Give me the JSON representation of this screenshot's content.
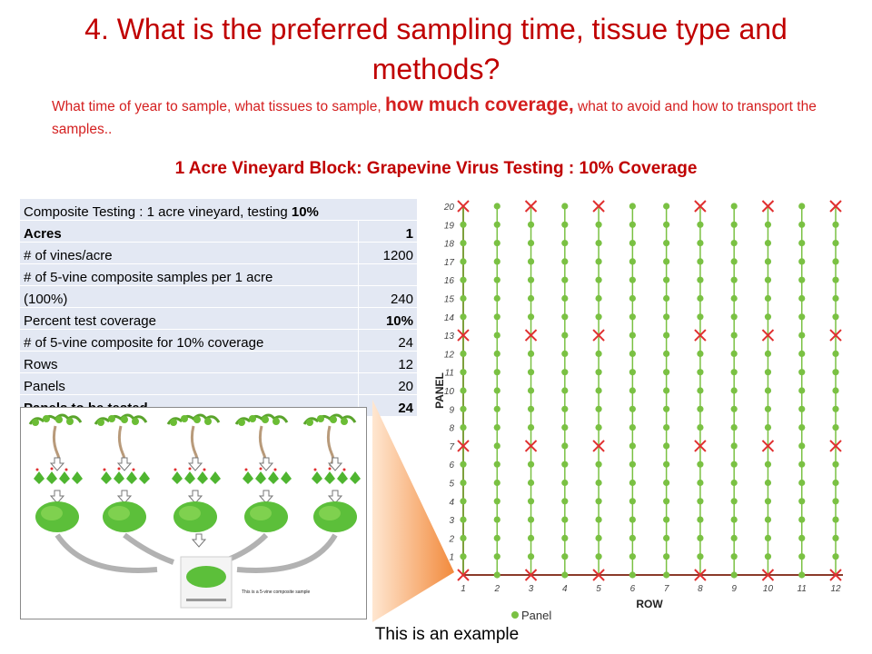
{
  "slide": {
    "title_line1": "4. What is the preferred sampling time, tissue type and",
    "title_line2": "methods?",
    "subtitle_a": "What time of year to sample, what tissues to sample, ",
    "subtitle_b": "how much coverage,",
    "subtitle_c": " what to avoid and how to transport the samples..",
    "block_title": "1 Acre Vineyard Block: Grapevine Virus Testing : 10% Coverage",
    "footer": "This is an example",
    "colors": {
      "title": "#c00000",
      "table_bg": "#e3e8f3",
      "dot": "#7ac143",
      "cross": "#e03030",
      "axis": "#8b3a2a"
    }
  },
  "table": {
    "header_text": "Composite Testing  : 1 acre vineyard, testing ",
    "header_bold": "10%",
    "rows": [
      {
        "label": "Acres",
        "value": "1"
      },
      {
        "label": "# of vines/acre",
        "value": "1200"
      },
      {
        "label": "# of 5-vine composite samples per 1 acre",
        "value": ""
      },
      {
        "label": "(100%)",
        "value": "240"
      },
      {
        "label": "Percent test coverage",
        "value": "10%"
      },
      {
        "label": "# of 5-vine composite for 10% coverage",
        "value": "24"
      },
      {
        "label": "Rows",
        "value": "12"
      },
      {
        "label": "Panels",
        "value": "20"
      },
      {
        "label": "Panels to be tested",
        "value": "24"
      }
    ]
  },
  "illustration": {
    "sample_caption": "This is a 5-vine composite sample",
    "icons": [
      "grapevine-icon",
      "arrow-down-icon",
      "leaf-cluster-icon",
      "sample-bag-icon"
    ]
  },
  "chart_data": {
    "type": "scatter",
    "xlabel": "ROW",
    "ylabel": "PANEL",
    "xlim": [
      1,
      12
    ],
    "ylim": [
      0,
      20
    ],
    "x_ticks": [
      "1",
      "2",
      "3",
      "4",
      "5",
      "6",
      "7",
      "8",
      "9",
      "10",
      "11",
      "12"
    ],
    "y_ticks": [
      "1",
      "2",
      "3",
      "4",
      "5",
      "6",
      "7",
      "8",
      "9",
      "10",
      "11",
      "12",
      "13",
      "14",
      "15",
      "16",
      "17",
      "18",
      "19",
      "20"
    ],
    "legend": [
      "Panel"
    ],
    "legend_position": "bottom",
    "series": [
      {
        "name": "Panel",
        "marker": "dot",
        "rows": [
          1,
          2,
          3,
          4,
          5,
          6,
          7,
          8,
          9,
          10,
          11,
          12
        ],
        "panels": "1-20"
      }
    ],
    "tested_rows": [
      1,
      3,
      5,
      8,
      10,
      12
    ],
    "tested_panels": [
      0,
      7,
      13,
      20
    ]
  }
}
